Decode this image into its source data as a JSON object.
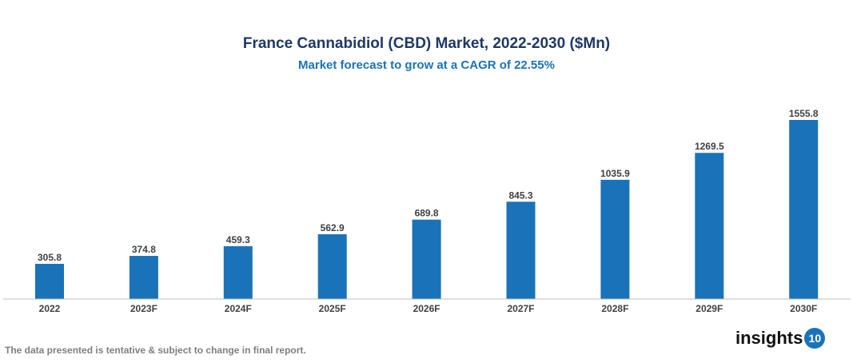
{
  "chart_data": {
    "type": "bar",
    "title": "France Cannabidiol (CBD) Market, 2022-2030 ($Mn)",
    "subtitle": "Market forecast to grow at a CAGR of 22.55%",
    "categories": [
      "2022",
      "2023F",
      "2024F",
      "2025F",
      "2026F",
      "2027F",
      "2028F",
      "2029F",
      "2030F"
    ],
    "values": [
      305.8,
      374.8,
      459.3,
      562.9,
      689.8,
      845.3,
      1035.9,
      1269.5,
      1555.8
    ],
    "value_labels": [
      "305.8",
      "374.8",
      "459.3",
      "562.9",
      "689.8",
      "845.3",
      "1035.9",
      "1269.5",
      "1555.8"
    ],
    "xlabel": "",
    "ylabel": "",
    "ylim": [
      0,
      1600
    ],
    "grid": false,
    "bar_color": "#1a73b8"
  },
  "footer": {
    "disclaimer": "The data presented is tentative & subject to change in final report."
  },
  "logo": {
    "text": "insights",
    "badge": "10"
  }
}
